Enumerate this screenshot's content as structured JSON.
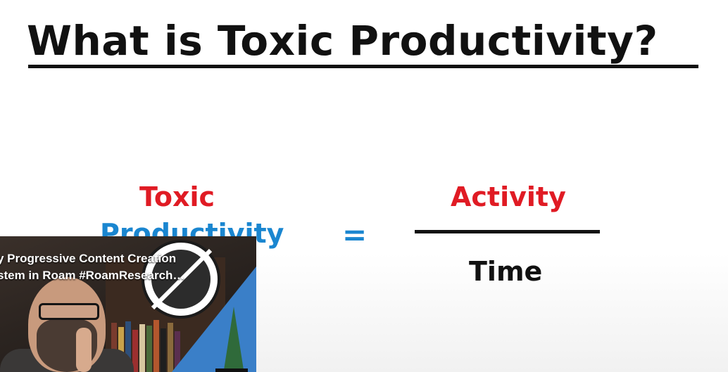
{
  "slide": {
    "title": "What is Toxic Productivity?",
    "left_term_line1": "Toxic",
    "left_term_line2": "Productivity",
    "equals": "=",
    "numerator": "Activity",
    "denominator": "Time",
    "colors": {
      "red": "#e01b24",
      "blue": "#1a86d0",
      "black": "#111111"
    }
  },
  "miniplayer": {
    "title_line1": "y Progressive Content Creation",
    "title_line2": "stem in Roam #RoamResearch…",
    "badge_icon": "crossed-out-roam-logo-icon",
    "accent_color": "#3a7fc8"
  }
}
